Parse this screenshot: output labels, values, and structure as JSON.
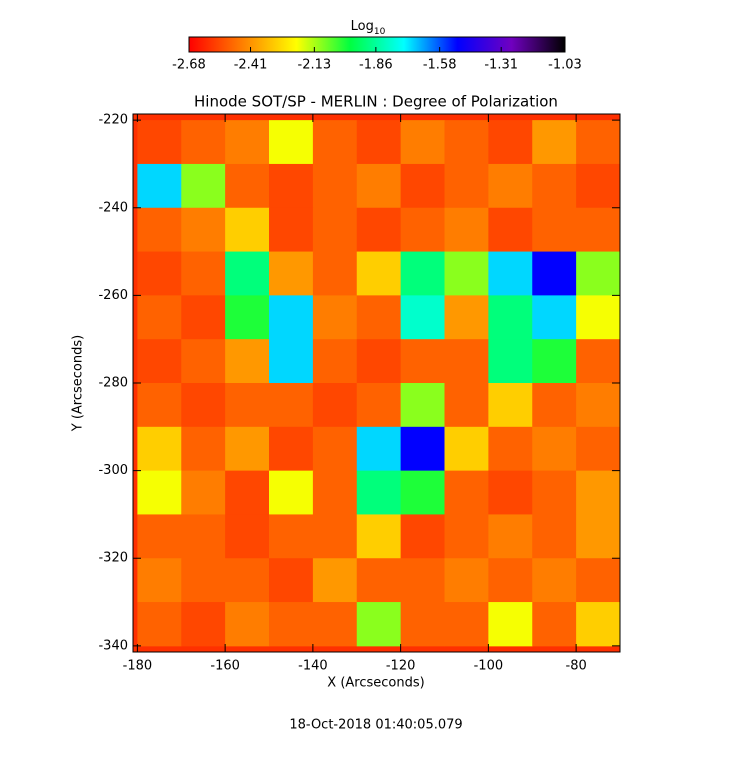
{
  "chart_data": {
    "type": "heatmap",
    "title": "Hinode SOT/SP - MERLIN : Degree of Polarization",
    "xlabel": "X (Arcseconds)",
    "ylabel": "Y (Arcseconds)",
    "footer": "18-Oct-2018 01:40:05.079",
    "colorbar_label": "Log",
    "colorbar_label_sub": "10",
    "colorbar_lim": [
      -2.68,
      -1.03
    ],
    "colorbar_ticks": [
      -2.68,
      -2.41,
      -2.13,
      -1.86,
      -1.58,
      -1.31,
      -1.03
    ],
    "colormap": [
      "#ff0000",
      "#ff8000",
      "#ffff00",
      "#00ff40",
      "#00ffff",
      "#0000ff",
      "#7000c0",
      "#000000"
    ],
    "xlim": [
      -181,
      -70
    ],
    "ylim": [
      -341.4,
      -218.6
    ],
    "xticks": [
      -180,
      -160,
      -140,
      -120,
      -100,
      -80
    ],
    "yticks": [
      -220,
      -240,
      -260,
      -280,
      -300,
      -320,
      -340
    ],
    "x": [
      -175,
      -165,
      -155,
      -145,
      -135,
      -125,
      -115,
      -105,
      -95,
      -85,
      -75
    ],
    "y": [
      -225,
      -235,
      -245,
      -255,
      -265,
      -275,
      -285,
      -295,
      -305,
      -315,
      -325,
      -335
    ],
    "z": [
      [
        -2.55,
        -2.5,
        -2.45,
        -2.2,
        -2.5,
        -2.55,
        -2.45,
        -2.5,
        -2.55,
        -2.4,
        -2.5
      ],
      [
        -1.7,
        -2.1,
        -2.5,
        -2.55,
        -2.5,
        -2.45,
        -2.55,
        -2.5,
        -2.45,
        -2.5,
        -2.55
      ],
      [
        -2.5,
        -2.45,
        -2.3,
        -2.55,
        -2.5,
        -2.55,
        -2.5,
        -2.45,
        -2.55,
        -2.5,
        -2.5
      ],
      [
        -2.55,
        -2.5,
        -1.9,
        -2.4,
        -2.5,
        -2.3,
        -1.9,
        -2.1,
        -1.7,
        -1.5,
        -2.1
      ],
      [
        -2.5,
        -2.55,
        -2.0,
        -1.7,
        -2.45,
        -2.5,
        -1.8,
        -2.4,
        -1.9,
        -1.7,
        -2.2
      ],
      [
        -2.55,
        -2.5,
        -2.4,
        -1.7,
        -2.5,
        -2.55,
        -2.5,
        -2.5,
        -1.9,
        -2.0,
        -2.5
      ],
      [
        -2.5,
        -2.55,
        -2.5,
        -2.5,
        -2.55,
        -2.5,
        -2.1,
        -2.5,
        -2.3,
        -2.5,
        -2.45
      ],
      [
        -2.3,
        -2.5,
        -2.4,
        -2.55,
        -2.5,
        -1.7,
        -1.5,
        -2.3,
        -2.5,
        -2.45,
        -2.5
      ],
      [
        -2.2,
        -2.45,
        -2.55,
        -2.2,
        -2.5,
        -1.9,
        -2.0,
        -2.5,
        -2.55,
        -2.5,
        -2.4
      ],
      [
        -2.5,
        -2.5,
        -2.55,
        -2.5,
        -2.5,
        -2.3,
        -2.55,
        -2.5,
        -2.45,
        -2.5,
        -2.4
      ],
      [
        -2.45,
        -2.5,
        -2.5,
        -2.55,
        -2.4,
        -2.5,
        -2.5,
        -2.45,
        -2.5,
        -2.45,
        -2.5
      ],
      [
        -2.5,
        -2.55,
        -2.45,
        -2.5,
        -2.5,
        -2.1,
        -2.5,
        -2.5,
        -2.2,
        -2.5,
        -2.3
      ]
    ]
  }
}
